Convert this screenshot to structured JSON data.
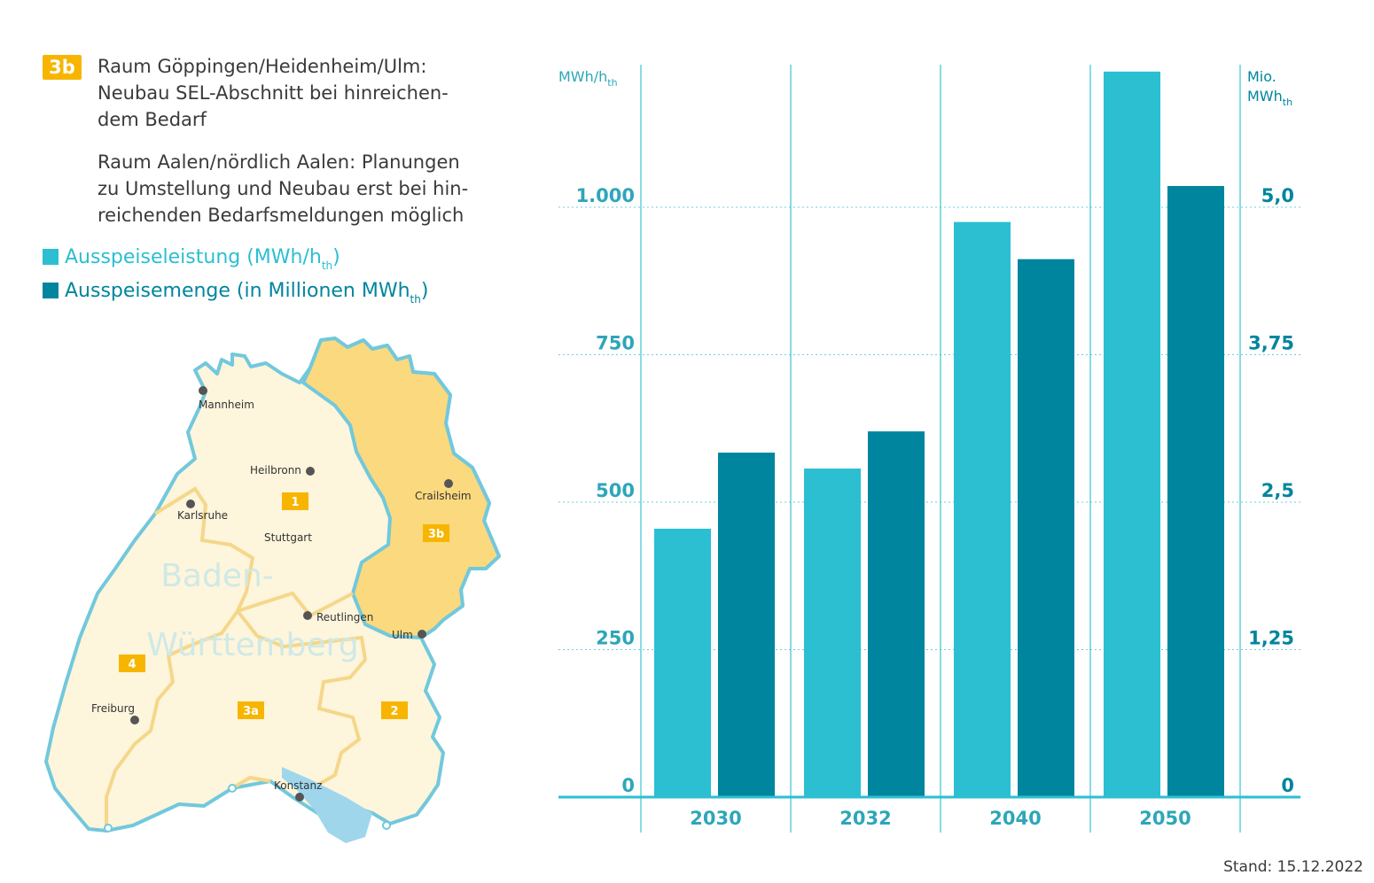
{
  "info": {
    "badge": "3b",
    "para1_lines": [
      "Raum Göppingen/Heidenheim/Ulm:",
      "Neubau SEL-Abschnitt bei hinreichen-",
      "dem Bedarf"
    ],
    "para2_lines": [
      "Raum Aalen/nördlich Aalen: Planungen",
      "zu Umstellung und Neubau erst bei hin-",
      "reichenden Bedarfsmeldungen möglich"
    ]
  },
  "legend": [
    {
      "text": "Ausspeiseleistung (MWh/h",
      "sub": "th",
      "suffix": ")",
      "color": "#2bbfd1"
    },
    {
      "text": "Ausspeisemenge (in Millionen MWh",
      "sub": "th",
      "suffix": ")",
      "color": "#00859e"
    }
  ],
  "map": {
    "region_label": [
      "Baden-",
      "Württemberg"
    ],
    "cities": [
      "Mannheim",
      "Heilbronn",
      "Crailsheim",
      "Karlsruhe",
      "Stuttgart",
      "Reutlingen",
      "Ulm",
      "Freiburg",
      "Konstanz"
    ],
    "zones": [
      "1",
      "2",
      "3a",
      "3b",
      "4"
    ],
    "colors": {
      "land": "#fdf5dc",
      "highlight": "#fbd97e",
      "border": "#72c8dc",
      "zone_line": "#f5d78a",
      "lake": "#9fd6ec",
      "badge": "#f7b500"
    }
  },
  "chart_data": {
    "type": "bar",
    "categories": [
      "2030",
      "2032",
      "2040",
      "2050"
    ],
    "series": [
      {
        "name": "Ausspeiseleistung (MWh/hth)",
        "axis": "left",
        "unit": "MWh/hth",
        "values": [
          455,
          557,
          975,
          1230
        ],
        "color": "#2bbfd1"
      },
      {
        "name": "Ausspeisemenge (in Millionen MWhth)",
        "axis": "right",
        "unit": "Mio. MWhth",
        "values": [
          2.92,
          3.1,
          4.56,
          5.18
        ],
        "color": "#00859e"
      }
    ],
    "y_left": {
      "label": "MWh/h",
      "label_sub": "th",
      "ylim": [
        0,
        1250
      ],
      "ticks": [
        0,
        250,
        500,
        750,
        1000
      ],
      "tick_labels": [
        "0",
        "250",
        "500",
        "750",
        "1.000"
      ]
    },
    "y_right": {
      "label": "Mio.",
      "label2": "MWh",
      "label_sub": "th",
      "ylim": [
        0,
        6.25
      ],
      "ticks": [
        0,
        1.25,
        2.5,
        3.75,
        5.0
      ],
      "tick_labels": [
        "0",
        "1,25",
        "2,5",
        "3,75",
        "5,0"
      ]
    },
    "grid": true,
    "colors": {
      "axis": "#2bbfd1",
      "tick_text": "#2ea6b9",
      "right_text": "#00859e",
      "category_text": "#2ea6b9"
    }
  },
  "footer": {
    "stand": "Stand: 15.12.2022"
  }
}
